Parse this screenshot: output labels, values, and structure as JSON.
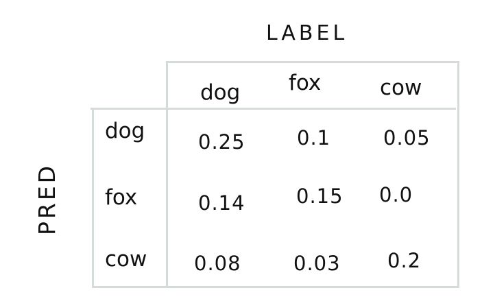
{
  "axis_titles": {
    "x": "LABEL",
    "y": "PRED"
  },
  "columns": [
    "dog",
    "fox",
    "cow"
  ],
  "rows": [
    {
      "label": "dog",
      "values": [
        "0.25",
        "0.1",
        "0.05"
      ]
    },
    {
      "label": "fox",
      "values": [
        "0.14",
        "0.15",
        "0.0"
      ]
    },
    {
      "label": "cow",
      "values": [
        "0.08",
        "0.03",
        "0.2"
      ]
    }
  ],
  "colors": {
    "ink": "#111111",
    "grid": "#d5dbd9",
    "background": "#ffffff"
  }
}
